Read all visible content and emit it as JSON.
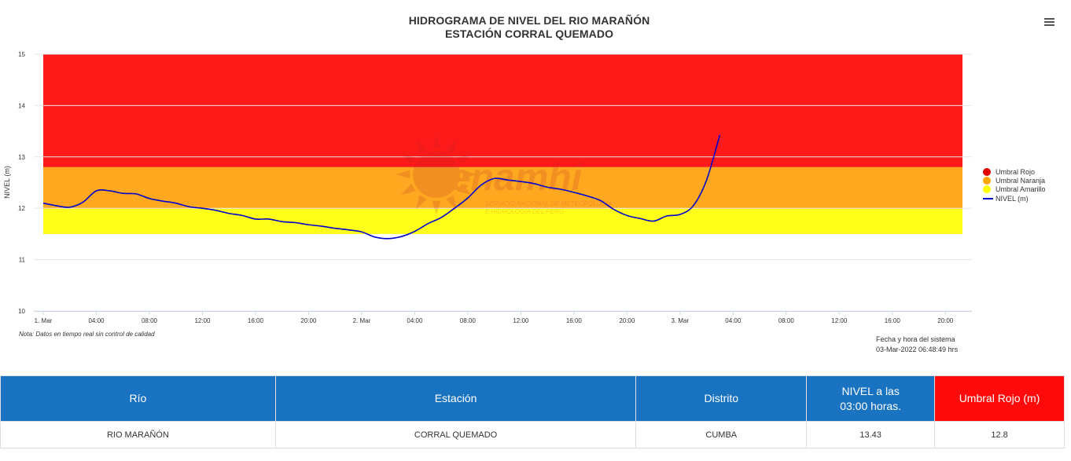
{
  "chart": {
    "title_line1": "HIDROGRAMA DE NIVEL DEL RIO MARAÑÓN",
    "title_line2": "ESTACIÓN CORRAL QUEMADO",
    "menu_icon": "hamburger-menu-icon",
    "note": "Nota: Datos en tiempo real sin control de calidad",
    "system_time_label": "Fecha y hora del sistema",
    "system_time_value": "03-Mar-2022 06:48:49 hrs",
    "watermark_brand": "Senamhi",
    "watermark_line1": "SERVICIO NACIONAL DE METEOROLOGÍA",
    "watermark_line2": "E HIDROLOGÍA DEL PERÚ"
  },
  "chart_data": {
    "type": "line",
    "title": "HIDROGRAMA DE NIVEL DEL RIO MARAÑÓN\nESTACIÓN CORRAL QUEMADO",
    "xlabel": "",
    "ylabel": "NIVEL (m)",
    "ylim": [
      10,
      15
    ],
    "xlim": [
      "2022-03-01T00:00",
      "2022-03-03T22:00"
    ],
    "y_ticks": [
      "10",
      "11",
      "12",
      "13",
      "14",
      "15"
    ],
    "x_ticks": [
      {
        "hour": 0,
        "label": "1. Mar"
      },
      {
        "hour": 4,
        "label": "04:00"
      },
      {
        "hour": 8,
        "label": "08:00"
      },
      {
        "hour": 12,
        "label": "12:00"
      },
      {
        "hour": 16,
        "label": "16:00"
      },
      {
        "hour": 20,
        "label": "20:00"
      },
      {
        "hour": 24,
        "label": "2. Mar"
      },
      {
        "hour": 28,
        "label": "04:00"
      },
      {
        "hour": 32,
        "label": "08:00"
      },
      {
        "hour": 36,
        "label": "12:00"
      },
      {
        "hour": 40,
        "label": "16:00"
      },
      {
        "hour": 44,
        "label": "20:00"
      },
      {
        "hour": 48,
        "label": "3. Mar"
      },
      {
        "hour": 52,
        "label": "04:00"
      },
      {
        "hour": 56,
        "label": "08:00"
      },
      {
        "hour": 60,
        "label": "12:00"
      },
      {
        "hour": 64,
        "label": "16:00"
      },
      {
        "hour": 68,
        "label": "20:00"
      }
    ],
    "grid": true,
    "legend_position": "right",
    "bands": [
      {
        "name": "Umbral Rojo",
        "from": 12.8,
        "to": 15,
        "color": "#ff1a1a"
      },
      {
        "name": "Umbral Naranja",
        "from": 12.0,
        "to": 12.8,
        "color": "#ffa820"
      },
      {
        "name": "Umbral Amarillo",
        "from": 11.5,
        "to": 12.0,
        "color": "#ffff1a"
      }
    ],
    "series": [
      {
        "name": "NIVEL (m)",
        "color": "#0000cc",
        "x": [
          "2022-03-01T00:00",
          "2022-03-01T01:00",
          "2022-03-01T02:00",
          "2022-03-01T03:00",
          "2022-03-01T04:00",
          "2022-03-01T05:00",
          "2022-03-01T06:00",
          "2022-03-01T07:00",
          "2022-03-01T08:00",
          "2022-03-01T09:00",
          "2022-03-01T10:00",
          "2022-03-01T11:00",
          "2022-03-01T12:00",
          "2022-03-01T13:00",
          "2022-03-01T14:00",
          "2022-03-01T15:00",
          "2022-03-01T16:00",
          "2022-03-01T17:00",
          "2022-03-01T18:00",
          "2022-03-01T19:00",
          "2022-03-01T20:00",
          "2022-03-01T21:00",
          "2022-03-01T22:00",
          "2022-03-01T23:00",
          "2022-03-02T00:00",
          "2022-03-02T01:00",
          "2022-03-02T02:00",
          "2022-03-02T03:00",
          "2022-03-02T04:00",
          "2022-03-02T05:00",
          "2022-03-02T06:00",
          "2022-03-02T07:00",
          "2022-03-02T08:00",
          "2022-03-02T09:00",
          "2022-03-02T10:00",
          "2022-03-02T11:00",
          "2022-03-02T12:00",
          "2022-03-02T13:00",
          "2022-03-02T14:00",
          "2022-03-02T15:00",
          "2022-03-02T16:00",
          "2022-03-02T17:00",
          "2022-03-02T18:00",
          "2022-03-02T19:00",
          "2022-03-02T20:00",
          "2022-03-02T21:00",
          "2022-03-02T22:00",
          "2022-03-02T23:00",
          "2022-03-03T00:00",
          "2022-03-03T01:00",
          "2022-03-03T02:00",
          "2022-03-03T03:00"
        ],
        "values": [
          12.1,
          12.05,
          12.02,
          12.12,
          12.34,
          12.34,
          12.29,
          12.28,
          12.19,
          12.14,
          12.1,
          12.03,
          12.0,
          11.96,
          11.9,
          11.86,
          11.79,
          11.79,
          11.74,
          11.72,
          11.68,
          11.65,
          11.61,
          11.58,
          11.54,
          11.44,
          11.41,
          11.45,
          11.55,
          11.7,
          11.82,
          12.0,
          12.2,
          12.45,
          12.58,
          12.55,
          12.52,
          12.48,
          12.41,
          12.37,
          12.31,
          12.24,
          12.15,
          11.98,
          11.86,
          11.8,
          11.75,
          11.85,
          11.88,
          12.05,
          12.55,
          13.43
        ]
      }
    ]
  },
  "legend": {
    "items": [
      {
        "label": "Umbral Rojo",
        "color": "#e00000"
      },
      {
        "label": "Umbral Naranja",
        "color": "#ffa500"
      },
      {
        "label": "Umbral Amarillo",
        "color": "#ffff00"
      },
      {
        "label": "NIVEL (m)",
        "color": "#0000cc"
      }
    ]
  },
  "table": {
    "headers": {
      "rio": "Río",
      "estacion": "Estación",
      "distrito": "Distrito",
      "nivel_line1": "NIVEL a las",
      "nivel_line2": "03:00 horas.",
      "umbral": "Umbral Rojo (m)"
    },
    "row": {
      "rio": "RIO MARAÑÓN",
      "estacion": "CORRAL QUEMADO",
      "distrito": "CUMBA",
      "nivel": "13.43",
      "umbral": "12.8"
    }
  }
}
